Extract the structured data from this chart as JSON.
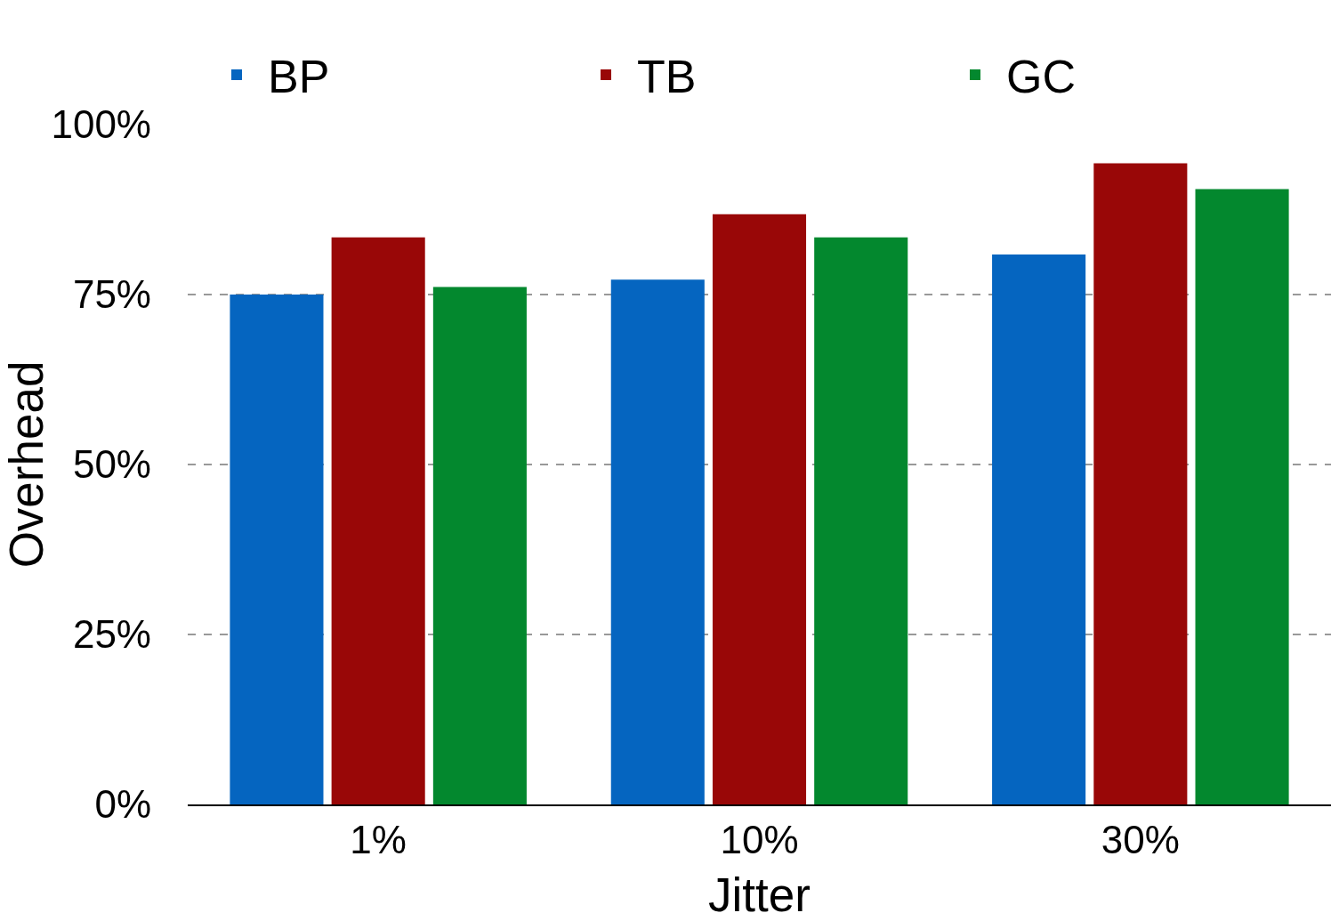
{
  "chart_data": {
    "type": "bar",
    "xlabel": "Jitter",
    "ylabel": "Overhead",
    "categories": [
      "1%",
      "10%",
      "30%"
    ],
    "series": [
      {
        "name": "BP",
        "color": "#0565c0",
        "values": [
          75.0,
          77.2,
          80.9
        ]
      },
      {
        "name": "TB",
        "color": "#990707",
        "values": [
          83.4,
          86.8,
          94.3
        ]
      },
      {
        "name": "GC",
        "color": "#03882e",
        "values": [
          76.1,
          83.4,
          90.5
        ]
      }
    ],
    "ylim": [
      0,
      100
    ],
    "yticks": [
      {
        "value": 0,
        "label": "0%"
      },
      {
        "value": 25,
        "label": "25%"
      },
      {
        "value": 50,
        "label": "50%"
      },
      {
        "value": 75,
        "label": "75%"
      },
      {
        "value": 100,
        "label": "100%"
      }
    ],
    "grid": "y",
    "legend": "top"
  }
}
